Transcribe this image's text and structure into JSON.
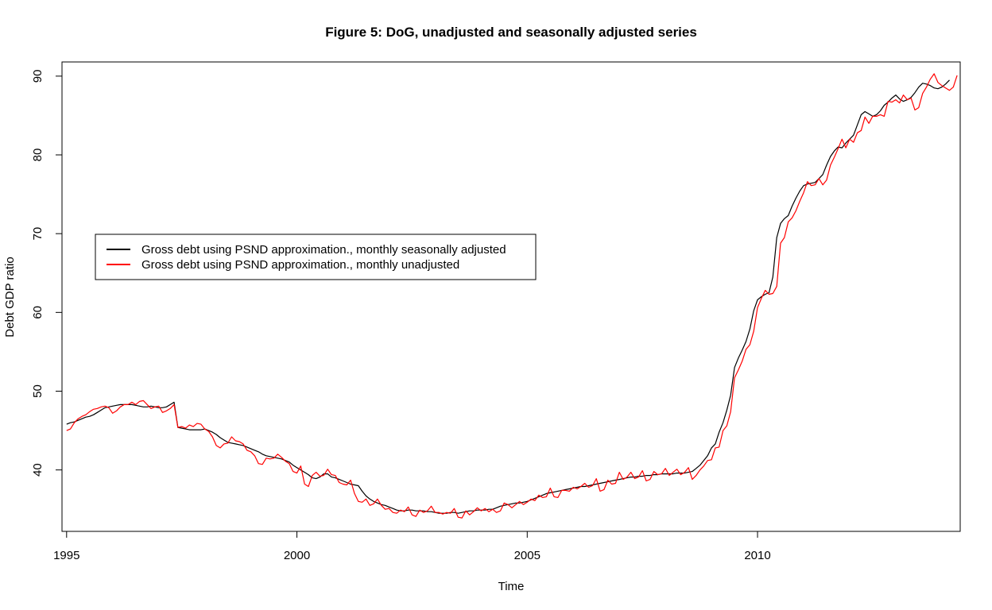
{
  "chart_data": {
    "type": "line",
    "title": "Figure 5: DoG, unadjusted and seasonally adjusted series",
    "xlabel": "Time",
    "ylabel": "Debt GDP ratio",
    "xlim": [
      1994.9,
      2014.4
    ],
    "ylim": [
      32.2,
      91.8
    ],
    "x_ticks": [
      1995,
      2000,
      2005,
      2010
    ],
    "y_ticks": [
      40,
      50,
      60,
      70,
      80,
      90
    ],
    "grid": false,
    "legend_position": "left-middle",
    "x_start": 1995.0,
    "x_step": 0.08333333,
    "series": [
      {
        "name": "Gross debt using PSND approximation., monthly seasonally adjusted",
        "color": "#000000",
        "values": [
          45.8,
          46.0,
          46.1,
          46.3,
          46.5,
          46.7,
          46.8,
          47.0,
          47.3,
          47.6,
          47.9,
          48.0,
          48.1,
          48.2,
          48.3,
          48.3,
          48.3,
          48.3,
          48.2,
          48.1,
          48.0,
          48.0,
          48.1,
          48.0,
          47.9,
          47.9,
          48.0,
          48.3,
          48.6,
          45.4,
          45.3,
          45.2,
          45.1,
          45.1,
          45.1,
          45.1,
          45.2,
          45.0,
          44.8,
          44.5,
          44.1,
          43.8,
          43.5,
          43.4,
          43.3,
          43.2,
          43.1,
          42.9,
          42.7,
          42.5,
          42.3,
          42.0,
          41.8,
          41.7,
          41.6,
          41.5,
          41.4,
          41.2,
          41.0,
          40.6,
          40.3,
          40.0,
          39.7,
          39.4,
          39.0,
          38.9,
          39.1,
          39.5,
          39.5,
          39.1,
          39.0,
          38.8,
          38.6,
          38.4,
          38.2,
          38.1,
          38.0,
          37.3,
          36.7,
          36.3,
          36.0,
          35.8,
          35.6,
          35.5,
          35.3,
          35.1,
          34.9,
          34.8,
          34.8,
          34.9,
          34.9,
          34.8,
          34.8,
          34.8,
          34.7,
          34.7,
          34.6,
          34.5,
          34.5,
          34.5,
          34.6,
          34.6,
          34.5,
          34.6,
          34.7,
          34.8,
          34.8,
          34.9,
          34.9,
          34.9,
          35.0,
          35.0,
          35.2,
          35.4,
          35.5,
          35.6,
          35.7,
          35.8,
          35.8,
          35.9,
          36.0,
          36.2,
          36.4,
          36.6,
          36.8,
          37.0,
          37.1,
          37.2,
          37.3,
          37.4,
          37.5,
          37.6,
          37.7,
          37.8,
          37.9,
          37.9,
          38.0,
          38.1,
          38.2,
          38.3,
          38.4,
          38.5,
          38.6,
          38.7,
          38.8,
          38.9,
          39.0,
          39.1,
          39.1,
          39.2,
          39.2,
          39.3,
          39.3,
          39.4,
          39.4,
          39.5,
          39.5,
          39.5,
          39.5,
          39.6,
          39.6,
          39.6,
          39.7,
          39.8,
          40.2,
          40.6,
          41.2,
          41.8,
          42.8,
          43.3,
          44.8,
          46.0,
          47.6,
          49.5,
          53.0,
          54.2,
          55.2,
          56.3,
          57.9,
          60.2,
          61.6,
          62.0,
          62.3,
          62.5,
          64.5,
          69.5,
          71.3,
          71.9,
          72.3,
          73.5,
          74.5,
          75.4,
          76.1,
          76.3,
          76.4,
          76.5,
          77.0,
          77.5,
          78.7,
          79.8,
          80.5,
          81.0,
          80.9,
          81.5,
          82.0,
          82.5,
          83.8,
          85.1,
          85.5,
          85.2,
          84.9,
          85.1,
          85.6,
          86.3,
          86.7,
          87.2,
          87.6,
          87.1,
          86.8,
          87.0,
          87.3,
          87.9,
          88.6,
          89.1,
          89.0,
          88.8,
          88.5,
          88.4,
          88.6,
          89.0,
          89.5
        ]
      },
      {
        "name": "Gross debt using PSND approximation., monthly unadjusted",
        "color": "#ff0000",
        "values": [
          45.0,
          45.2,
          46.0,
          46.5,
          46.8,
          47.0,
          47.4,
          47.7,
          47.8,
          48.0,
          48.1,
          47.9,
          47.2,
          47.5,
          48.0,
          48.3,
          48.3,
          48.6,
          48.3,
          48.7,
          48.8,
          48.3,
          47.8,
          48.0,
          48.1,
          47.3,
          47.5,
          47.8,
          48.3,
          45.4,
          45.5,
          45.3,
          45.7,
          45.5,
          45.9,
          45.8,
          45.2,
          44.9,
          44.2,
          43.1,
          42.8,
          43.3,
          43.4,
          44.2,
          43.7,
          43.6,
          43.3,
          42.5,
          42.3,
          41.8,
          40.8,
          40.7,
          41.5,
          41.4,
          41.5,
          42.0,
          41.6,
          41.1,
          40.8,
          39.8,
          39.6,
          40.5,
          38.2,
          37.9,
          39.3,
          39.7,
          39.2,
          39.3,
          40.1,
          39.4,
          39.3,
          38.4,
          38.2,
          38.1,
          38.7,
          37.0,
          36.0,
          35.9,
          36.3,
          35.5,
          35.7,
          36.3,
          35.5,
          35.0,
          35.1,
          34.6,
          34.5,
          34.9,
          34.7,
          35.3,
          34.3,
          34.1,
          34.9,
          34.6,
          34.8,
          35.4,
          34.6,
          34.6,
          34.4,
          34.6,
          34.5,
          35.1,
          34.0,
          33.9,
          34.8,
          34.3,
          34.7,
          35.2,
          34.8,
          35.1,
          34.7,
          35.0,
          34.6,
          34.8,
          35.8,
          35.6,
          35.2,
          35.6,
          36.0,
          35.6,
          35.9,
          36.3,
          36.1,
          36.8,
          36.5,
          36.6,
          37.7,
          36.6,
          36.5,
          37.4,
          37.4,
          37.3,
          37.8,
          37.6,
          37.9,
          38.3,
          37.8,
          38.0,
          38.9,
          37.3,
          37.5,
          38.7,
          38.2,
          38.3,
          39.7,
          38.8,
          39.1,
          39.7,
          38.9,
          39.1,
          39.9,
          38.6,
          38.8,
          39.8,
          39.4,
          39.5,
          40.2,
          39.3,
          39.7,
          40.1,
          39.4,
          39.7,
          40.3,
          38.8,
          39.3,
          40.0,
          40.5,
          41.2,
          41.3,
          42.8,
          42.9,
          45.0,
          45.6,
          47.4,
          51.7,
          52.7,
          53.8,
          55.3,
          55.9,
          57.6,
          60.6,
          61.8,
          62.8,
          62.3,
          62.4,
          63.3,
          68.8,
          69.5,
          71.5,
          72.0,
          72.9,
          74.1,
          75.2,
          76.6,
          76.1,
          76.2,
          77.0,
          76.2,
          76.8,
          78.7,
          79.7,
          80.8,
          82.0,
          80.9,
          82.0,
          81.6,
          82.8,
          83.1,
          84.8,
          84.0,
          84.9,
          84.9,
          85.1,
          84.9,
          86.8,
          86.7,
          87.0,
          86.6,
          87.6,
          87.0,
          87.2,
          85.7,
          86.0,
          87.8,
          88.6,
          89.6,
          90.3,
          89.2,
          88.8,
          88.5,
          88.2,
          88.6,
          90.1
        ]
      }
    ]
  }
}
